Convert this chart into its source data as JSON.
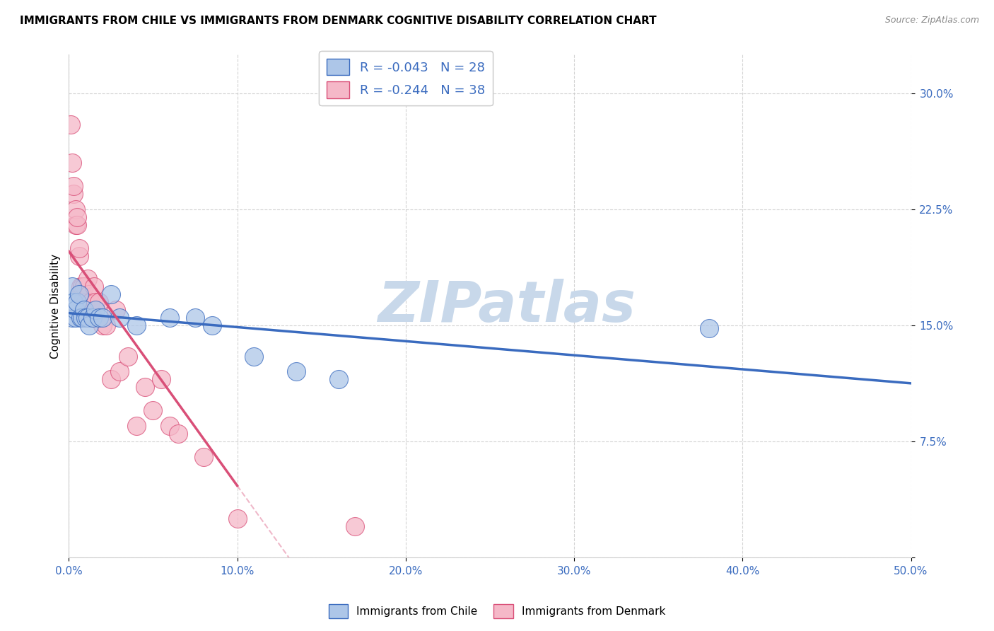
{
  "title": "IMMIGRANTS FROM CHILE VS IMMIGRANTS FROM DENMARK COGNITIVE DISABILITY CORRELATION CHART",
  "source": "Source: ZipAtlas.com",
  "ylabel": "Cognitive Disability",
  "xlim": [
    0.0,
    0.5
  ],
  "ylim": [
    0.0,
    0.325
  ],
  "xtick_vals": [
    0.0,
    0.1,
    0.2,
    0.3,
    0.4,
    0.5
  ],
  "ytick_vals": [
    0.0,
    0.075,
    0.15,
    0.225,
    0.3
  ],
  "xtick_labels": [
    "0.0%",
    "10.0%",
    "20.0%",
    "30.0%",
    "40.0%",
    "50.0%"
  ],
  "ytick_labels": [
    "",
    "7.5%",
    "15.0%",
    "22.5%",
    "30.0%"
  ],
  "legend_chile": "R = -0.043   N = 28",
  "legend_denmark": "R = -0.244   N = 38",
  "chile_color": "#adc6e8",
  "denmark_color": "#f5b8c8",
  "chile_line_color": "#3a6bbf",
  "denmark_line_color": "#d94f78",
  "watermark": "ZIPatlas",
  "watermark_color": "#c8d8ea",
  "legend_label_chile": "Immigrants from Chile",
  "legend_label_denmark": "Immigrants from Denmark",
  "chile_x": [
    0.001,
    0.002,
    0.002,
    0.003,
    0.004,
    0.004,
    0.005,
    0.006,
    0.007,
    0.008,
    0.009,
    0.01,
    0.011,
    0.012,
    0.014,
    0.016,
    0.018,
    0.02,
    0.025,
    0.03,
    0.04,
    0.06,
    0.075,
    0.085,
    0.11,
    0.135,
    0.16,
    0.38
  ],
  "chile_y": [
    0.16,
    0.175,
    0.155,
    0.165,
    0.155,
    0.16,
    0.165,
    0.17,
    0.155,
    0.155,
    0.16,
    0.155,
    0.155,
    0.15,
    0.155,
    0.16,
    0.155,
    0.155,
    0.17,
    0.155,
    0.15,
    0.155,
    0.155,
    0.15,
    0.13,
    0.12,
    0.115,
    0.148
  ],
  "denmark_x": [
    0.001,
    0.002,
    0.003,
    0.003,
    0.004,
    0.004,
    0.005,
    0.005,
    0.006,
    0.006,
    0.007,
    0.007,
    0.008,
    0.008,
    0.009,
    0.01,
    0.011,
    0.012,
    0.013,
    0.014,
    0.015,
    0.016,
    0.018,
    0.02,
    0.022,
    0.025,
    0.028,
    0.03,
    0.035,
    0.04,
    0.045,
    0.05,
    0.055,
    0.06,
    0.065,
    0.08,
    0.1,
    0.17
  ],
  "denmark_y": [
    0.28,
    0.255,
    0.235,
    0.24,
    0.215,
    0.225,
    0.215,
    0.22,
    0.195,
    0.2,
    0.17,
    0.175,
    0.165,
    0.175,
    0.175,
    0.165,
    0.18,
    0.17,
    0.165,
    0.155,
    0.175,
    0.165,
    0.165,
    0.15,
    0.15,
    0.115,
    0.16,
    0.12,
    0.13,
    0.085,
    0.11,
    0.095,
    0.115,
    0.085,
    0.08,
    0.065,
    0.025,
    0.02
  ]
}
